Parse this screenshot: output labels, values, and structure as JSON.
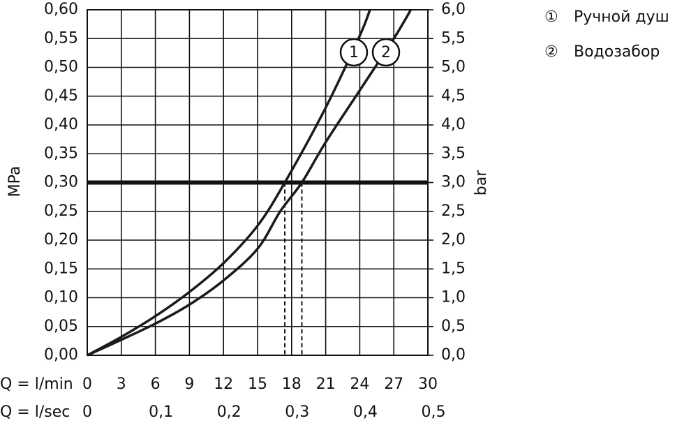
{
  "chart_data": {
    "type": "line",
    "y_label": "MPa",
    "y2_label": "bar",
    "x_label": "Q = l/min",
    "x2_label": "Q = l/sec",
    "xlim": [
      0,
      30
    ],
    "xticks": [
      0,
      3,
      6,
      9,
      12,
      15,
      18,
      21,
      24,
      27,
      30
    ],
    "x2lim": [
      0,
      0.5
    ],
    "x2ticks": [
      0,
      {
        "value": 0.1,
        "label": "0,1"
      },
      {
        "value": 0.2,
        "label": "0,2"
      },
      {
        "value": 0.3,
        "label": "0,3"
      },
      {
        "value": 0.4,
        "label": "0,4"
      },
      {
        "value": 0.5,
        "label": "0,5"
      }
    ],
    "ylim": [
      0,
      0.6
    ],
    "yticks": [
      {
        "value": 0,
        "label": "0,00"
      },
      {
        "value": 0.05,
        "label": "0,05"
      },
      {
        "value": 0.1,
        "label": "0,10"
      },
      {
        "value": 0.15,
        "label": "0,15"
      },
      {
        "value": 0.2,
        "label": "0,20"
      },
      {
        "value": 0.25,
        "label": "0,25"
      },
      {
        "value": 0.3,
        "label": "0,30"
      },
      {
        "value": 0.35,
        "label": "0,35"
      },
      {
        "value": 0.4,
        "label": "0,40"
      },
      {
        "value": 0.45,
        "label": "0,45"
      },
      {
        "value": 0.5,
        "label": "0,50"
      },
      {
        "value": 0.55,
        "label": "0,55"
      },
      {
        "value": 0.6,
        "label": "0,60"
      }
    ],
    "y2lim": [
      0,
      6
    ],
    "y2ticks": [
      {
        "value": 0,
        "label": "0,0"
      },
      {
        "value": 0.5,
        "label": "0,5"
      },
      {
        "value": 1,
        "label": "1,0"
      },
      {
        "value": 1.5,
        "label": "1,5"
      },
      {
        "value": 2,
        "label": "2,0"
      },
      {
        "value": 2.5,
        "label": "2,5"
      },
      {
        "value": 3,
        "label": "3,0"
      },
      {
        "value": 3.5,
        "label": "3,5"
      },
      {
        "value": 4,
        "label": "4,0"
      },
      {
        "value": 4.5,
        "label": "4,5"
      },
      {
        "value": 5,
        "label": "5,0"
      },
      {
        "value": 5.5,
        "label": "5,5"
      },
      {
        "value": 6,
        "label": "6,0"
      }
    ],
    "grid": true,
    "reference_y": 0.3,
    "drop_lines_x": [
      17.4,
      18.9
    ],
    "series": [
      {
        "name": "Ручной душ",
        "marker": "①",
        "label": "1",
        "color": "#1a1a1a",
        "x": [
          0,
          3,
          6,
          9,
          12,
          15,
          17.4,
          21,
          24,
          24.9
        ],
        "values": [
          0,
          0.032,
          0.068,
          0.11,
          0.16,
          0.225,
          0.3,
          0.43,
          0.555,
          0.6
        ]
      },
      {
        "name": "Водозабор",
        "marker": "②",
        "label": "2",
        "color": "#1a1a1a",
        "x": [
          0,
          3,
          6,
          9,
          12,
          15,
          17,
          18.9,
          21,
          24,
          27,
          28.5
        ],
        "values": [
          0,
          0.027,
          0.055,
          0.088,
          0.13,
          0.185,
          0.25,
          0.3,
          0.37,
          0.46,
          0.55,
          0.6
        ]
      }
    ]
  }
}
